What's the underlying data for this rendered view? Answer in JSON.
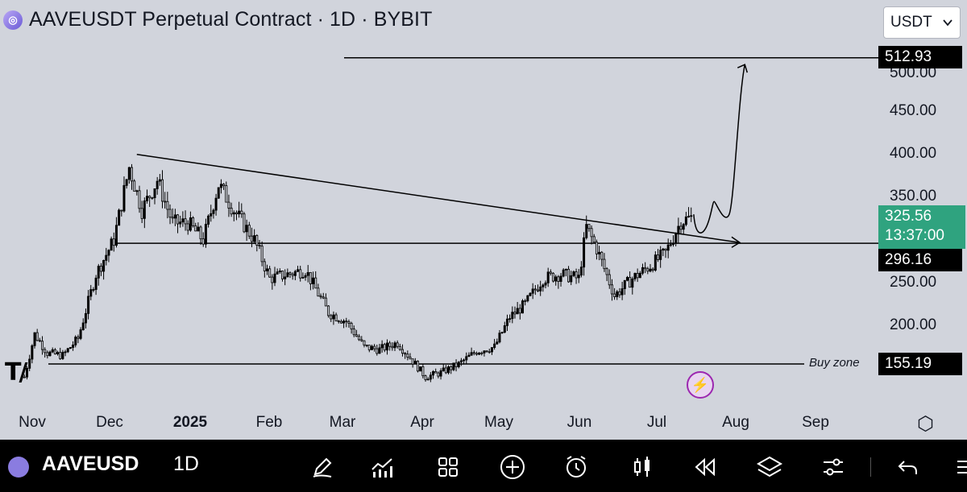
{
  "header": {
    "title": "AAVEUSDT Perpetual Contract · 1D · BYBIT",
    "currency": "USDT"
  },
  "price_axis": {
    "ticks": [
      "500.00",
      "450.00",
      "400.00",
      "350.00",
      "250.00",
      "200.00"
    ],
    "target_label": "512.93",
    "current_price": "325.56",
    "countdown": "13:37:00",
    "neckline_label": "296.16",
    "buy_zone_label": "155.19",
    "buy_zone_text": "Buy zone"
  },
  "time_axis": {
    "labels": [
      "Nov",
      "Dec",
      "2025",
      "Feb",
      "Mar",
      "Apr",
      "May",
      "Jun",
      "Jul",
      "Aug",
      "Sep"
    ]
  },
  "toolbar": {
    "symbol": "AAVEUSD",
    "timeframe": "1D",
    "icons": [
      "pencil-icon",
      "indicators-icon",
      "layout-icon",
      "plus-icon",
      "alarm-icon",
      "candles-icon",
      "replay-icon",
      "layers-icon",
      "settings-sliders-icon",
      "undo-icon"
    ]
  },
  "colors": {
    "up": "#2fa37f",
    "background": "#d1d4dc",
    "candle": "#000000"
  },
  "chart_data": {
    "type": "candlestick",
    "title": "AAVEUSDT Perpetual Contract · 1D · BYBIT",
    "ylim": [
      130,
      520
    ],
    "y_ticks": [
      200,
      250,
      350,
      400,
      450,
      500
    ],
    "x_labels": [
      "Nov",
      "Dec",
      "2025",
      "Feb",
      "Mar",
      "Apr",
      "May",
      "Jun",
      "Jul",
      "Aug",
      "Sep"
    ],
    "horizontal_lines": [
      {
        "label": "512.93",
        "value": 512.93
      },
      {
        "label": "296.16",
        "value": 296.16
      },
      {
        "label": "Buy zone",
        "value": 155.19
      }
    ],
    "trendline": {
      "from": {
        "date": "2024-12-17",
        "price": 400
      },
      "to": {
        "date": "2025-08-10",
        "price": 297
      }
    },
    "current_price": 325.56,
    "closes": [
      {
        "date": "2024-11-03",
        "price": 140
      },
      {
        "date": "2024-11-07",
        "price": 190
      },
      {
        "date": "2024-11-12",
        "price": 168
      },
      {
        "date": "2024-11-18",
        "price": 165
      },
      {
        "date": "2024-11-24",
        "price": 185
      },
      {
        "date": "2024-12-01",
        "price": 260
      },
      {
        "date": "2024-12-08",
        "price": 300
      },
      {
        "date": "2024-12-14",
        "price": 385
      },
      {
        "date": "2024-12-19",
        "price": 335
      },
      {
        "date": "2024-12-25",
        "price": 370
      },
      {
        "date": "2024-12-31",
        "price": 320
      },
      {
        "date": "2025-01-06",
        "price": 320
      },
      {
        "date": "2025-01-12",
        "price": 300
      },
      {
        "date": "2025-01-18",
        "price": 365
      },
      {
        "date": "2025-01-24",
        "price": 335
      },
      {
        "date": "2025-02-01",
        "price": 300
      },
      {
        "date": "2025-02-07",
        "price": 255
      },
      {
        "date": "2025-02-14",
        "price": 260
      },
      {
        "date": "2025-02-21",
        "price": 265
      },
      {
        "date": "2025-03-02",
        "price": 215
      },
      {
        "date": "2025-03-09",
        "price": 205
      },
      {
        "date": "2025-03-16",
        "price": 175
      },
      {
        "date": "2025-03-22",
        "price": 172
      },
      {
        "date": "2025-03-29",
        "price": 180
      },
      {
        "date": "2025-04-05",
        "price": 155
      },
      {
        "date": "2025-04-09",
        "price": 140
      },
      {
        "date": "2025-04-15",
        "price": 145
      },
      {
        "date": "2025-04-22",
        "price": 155
      },
      {
        "date": "2025-04-29",
        "price": 170
      },
      {
        "date": "2025-05-06",
        "price": 175
      },
      {
        "date": "2025-05-12",
        "price": 210
      },
      {
        "date": "2025-05-18",
        "price": 225
      },
      {
        "date": "2025-05-25",
        "price": 255
      },
      {
        "date": "2025-06-01",
        "price": 260
      },
      {
        "date": "2025-06-08",
        "price": 255
      },
      {
        "date": "2025-06-11",
        "price": 315
      },
      {
        "date": "2025-06-15",
        "price": 290
      },
      {
        "date": "2025-06-22",
        "price": 235
      },
      {
        "date": "2025-06-29",
        "price": 255
      },
      {
        "date": "2025-07-06",
        "price": 270
      },
      {
        "date": "2025-07-12",
        "price": 285
      },
      {
        "date": "2025-07-18",
        "price": 322
      },
      {
        "date": "2025-07-22",
        "price": 326
      }
    ],
    "projection": [
      {
        "date": "2025-07-23",
        "price": 330
      },
      {
        "date": "2025-07-26",
        "price": 315
      },
      {
        "date": "2025-07-31",
        "price": 345
      },
      {
        "date": "2025-08-04",
        "price": 330
      },
      {
        "date": "2025-08-12",
        "price": 505
      }
    ]
  }
}
